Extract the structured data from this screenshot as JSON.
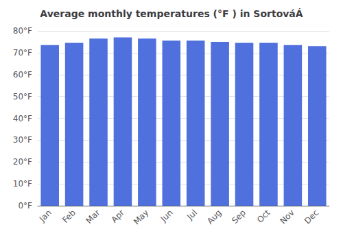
{
  "chart_data": {
    "type": "bar",
    "title": "Average monthly temperatures (°F ) in SortováÁ",
    "categories": [
      "Jan",
      "Feb",
      "Mar",
      "Apr",
      "May",
      "Jun",
      "Jul",
      "Aug",
      "Sep",
      "Oct",
      "Nov",
      "Dec"
    ],
    "values": [
      73.5,
      74.5,
      76.5,
      77.0,
      76.5,
      75.5,
      75.5,
      75.0,
      74.5,
      74.5,
      73.5,
      73.0
    ],
    "ylim": [
      0,
      80
    ],
    "yticks": [
      {
        "value": 0,
        "label": "0°F"
      },
      {
        "value": 10,
        "label": "10°F"
      },
      {
        "value": 20,
        "label": "20°F"
      },
      {
        "value": 30,
        "label": "30°F"
      },
      {
        "value": 40,
        "label": "40°F"
      },
      {
        "value": 50,
        "label": "50°F"
      },
      {
        "value": 60,
        "label": "60°F"
      },
      {
        "value": 70,
        "label": "70°F"
      },
      {
        "value": 80,
        "label": "80°F"
      }
    ],
    "grid": true
  }
}
